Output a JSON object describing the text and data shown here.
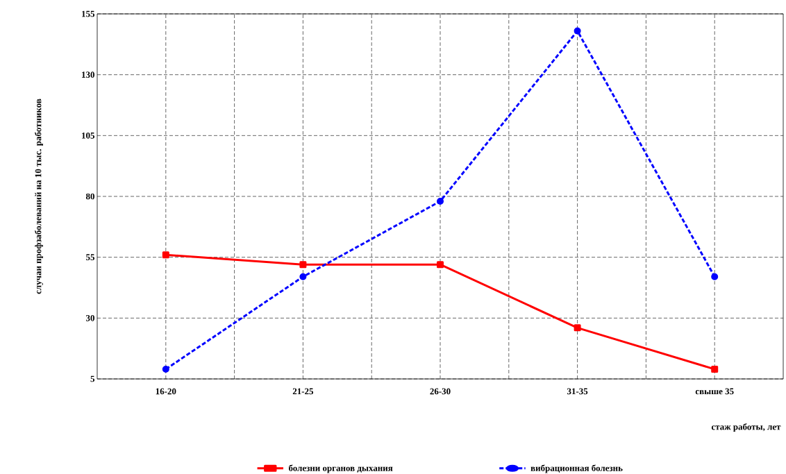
{
  "chart_data": {
    "type": "line",
    "xlabel": "стаж работы, лет",
    "ylabel": "случаи профзаболеваний на 10 тыс. работников",
    "categories": [
      "16-20",
      "21-25",
      "26-30",
      "31-35",
      "свыше 35"
    ],
    "series": [
      {
        "name": "болезни органов дыхания",
        "color": "#ff0000",
        "values": [
          56,
          52,
          52,
          26,
          9
        ],
        "marker": "square",
        "line_style": "solid"
      },
      {
        "name": "вибрационная болезнь",
        "color": "#0000ff",
        "values": [
          9,
          47,
          78,
          148,
          47
        ],
        "marker": "circle",
        "line_style": "dashed"
      }
    ],
    "ylim": [
      5,
      155
    ],
    "yticks": [
      5,
      30,
      55,
      80,
      105,
      130,
      155
    ],
    "grid": true,
    "legend": "bottom"
  }
}
